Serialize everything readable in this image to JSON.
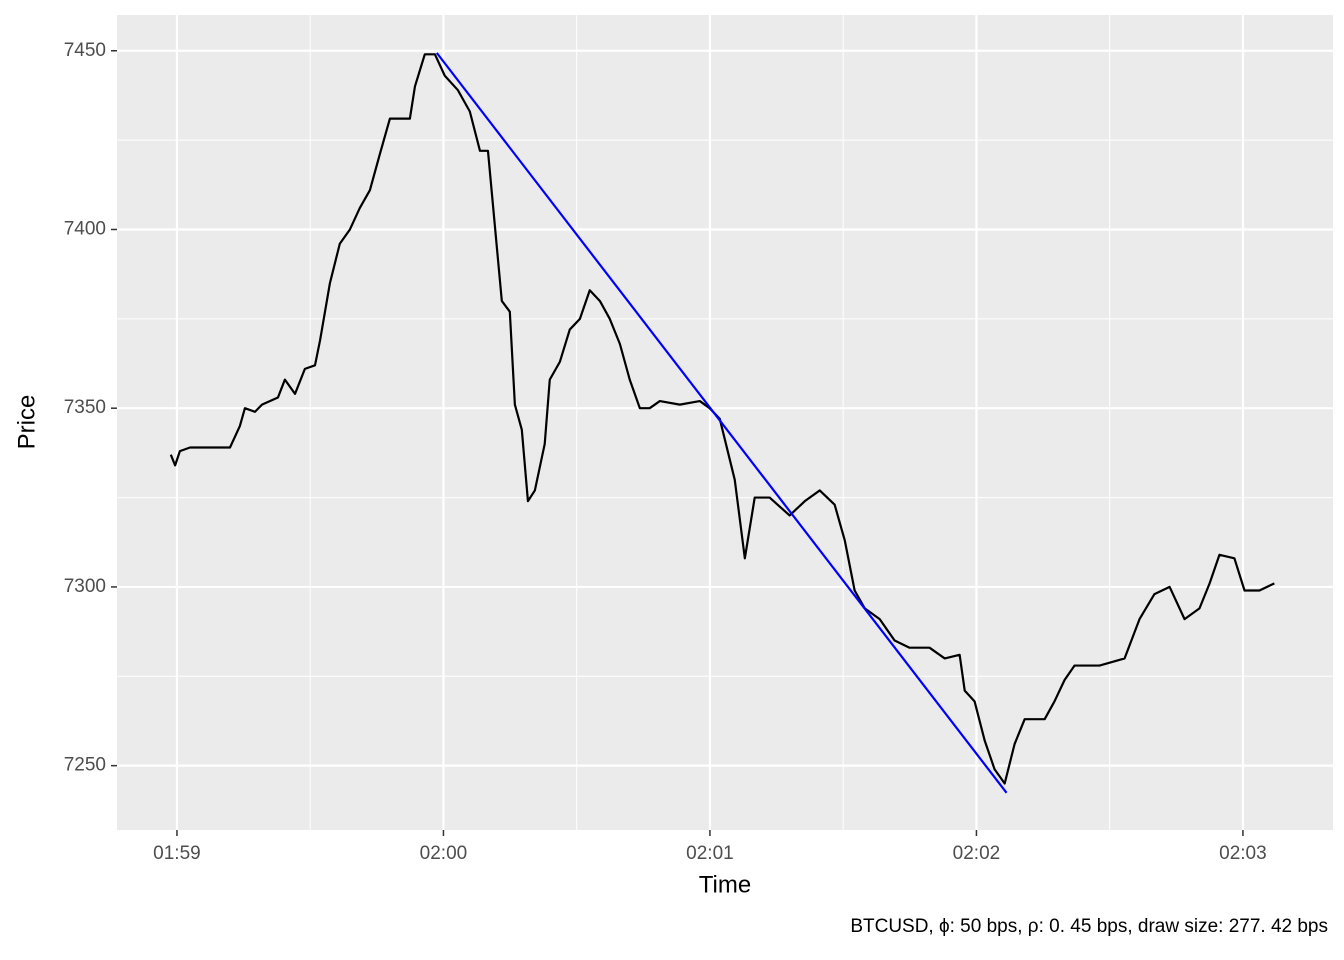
{
  "chart_data": {
    "type": "line",
    "x_label": "Time",
    "y_label": "Price",
    "caption": "BTCUSD, ϕ: 50 bps, ρ: 0. 45 bps, draw size: 277. 42 bps",
    "xlim": [
      118.775,
      123.338
    ],
    "ylim": [
      7232,
      7460
    ],
    "xticks": [
      {
        "value": 119,
        "label": "01:59"
      },
      {
        "value": 120,
        "label": "02:00"
      },
      {
        "value": 121,
        "label": "02:01"
      },
      {
        "value": 122,
        "label": "02:02"
      },
      {
        "value": 123,
        "label": "02:03"
      }
    ],
    "xminor": [
      119.5,
      120.5,
      121.5,
      122.5
    ],
    "yticks": [
      7250,
      7300,
      7350,
      7400,
      7450
    ],
    "yminor": [
      7275,
      7325,
      7375,
      7425
    ],
    "grid": true,
    "series": [
      {
        "color": "#000000",
        "x": [
          118.977,
          118.993,
          119.011,
          119.049,
          119.199,
          119.236,
          119.255,
          119.293,
          119.319,
          119.379,
          119.405,
          119.443,
          119.48,
          119.518,
          119.537,
          119.574,
          119.611,
          119.649,
          119.686,
          119.724,
          119.761,
          119.799,
          119.874,
          119.893,
          119.93,
          119.968,
          120.005,
          120.054,
          120.099,
          120.137,
          120.167,
          120.193,
          120.219,
          120.249,
          120.268,
          120.294,
          120.317,
          120.343,
          120.38,
          120.399,
          120.437,
          120.474,
          120.512,
          120.549,
          120.587,
          120.624,
          120.662,
          120.699,
          120.737,
          120.774,
          120.812,
          120.887,
          120.962,
          120.999,
          121.037,
          121.093,
          121.131,
          121.168,
          121.224,
          121.299,
          121.356,
          121.412,
          121.468,
          121.506,
          121.543,
          121.581,
          121.637,
          121.693,
          121.749,
          121.824,
          121.881,
          121.937,
          121.956,
          121.993,
          122.031,
          122.068,
          122.106,
          122.143,
          122.181,
          122.256,
          122.293,
          122.331,
          122.368,
          122.462,
          122.556,
          122.612,
          122.668,
          122.725,
          122.781,
          122.837,
          122.875,
          122.912,
          122.968,
          123.006,
          123.062,
          123.118
        ],
        "values": [
          7337,
          7334,
          7338,
          7339,
          7339,
          7345,
          7350,
          7349,
          7351,
          7353,
          7358,
          7354,
          7361,
          7362,
          7369,
          7385,
          7396,
          7400,
          7406,
          7411,
          7421,
          7431,
          7431,
          7440,
          7449,
          7449,
          7443,
          7439,
          7433,
          7422,
          7422,
          7401,
          7380,
          7377,
          7351,
          7344,
          7324,
          7327,
          7340,
          7358,
          7363,
          7372,
          7375,
          7383,
          7380,
          7375,
          7368,
          7358,
          7350,
          7350,
          7352,
          7351,
          7352,
          7350,
          7347,
          7330,
          7308,
          7325,
          7325,
          7320,
          7324,
          7327,
          7323,
          7313,
          7299,
          7294,
          7291,
          7285,
          7283,
          7283,
          7280,
          7281,
          7271,
          7268,
          7257,
          7249,
          7245,
          7256,
          7263,
          7263,
          7268,
          7274,
          7278,
          7278,
          7280,
          7291,
          7298,
          7300,
          7291,
          7294,
          7301,
          7309,
          7308,
          7299,
          7299,
          7301
        ]
      },
      {
        "color": "#0000ff",
        "x": [
          119.975,
          122.113
        ],
        "values": [
          7449.4,
          7242.4
        ]
      }
    ]
  }
}
